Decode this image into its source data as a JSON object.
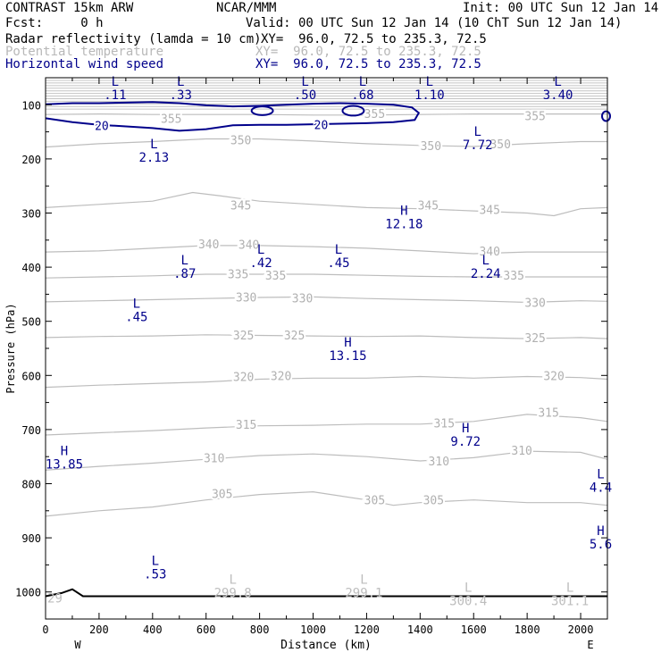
{
  "header": {
    "model": "CONTRAST 15km ARW",
    "org": "NCAR/MMM",
    "init": "Init: 00 UTC Sun 12 Jan 14",
    "fcst": "Fcst:     0 h",
    "valid": "Valid: 00 UTC Sun 12 Jan 14 (10 ChT Sun 12 Jan 14)",
    "fields": [
      {
        "name": "Radar reflectivity (lamda = 10 cm)",
        "xy": "XY=  96.0, 72.5 to 235.3, 72.5",
        "color": "#000000"
      },
      {
        "name": "Potential temperature",
        "xy": "XY=  96.0, 72.5 to 235.3, 72.5",
        "color": "#b8b8b8"
      },
      {
        "name": "Horizontal wind speed",
        "xy": "XY=  96.0, 72.5 to 235.3, 72.5",
        "color": "#00008b"
      }
    ]
  },
  "chart_data": {
    "type": "contour",
    "xlabel": "Distance (km)",
    "ylabel": "Pressure (hPa)",
    "xlim": [
      0,
      2100
    ],
    "ylim": [
      1050,
      50
    ],
    "x_ticks": [
      0,
      200,
      400,
      600,
      800,
      1000,
      1200,
      1400,
      1600,
      1800,
      2000
    ],
    "y_ticks": [
      100,
      200,
      300,
      400,
      500,
      600,
      700,
      800,
      900,
      1000
    ],
    "x_endpoints": {
      "left": "W",
      "right": "E"
    },
    "theta_contours": [
      {
        "value": 305,
        "pts": [
          [
            0,
            860
          ],
          [
            200,
            850
          ],
          [
            400,
            843
          ],
          [
            600,
            830
          ],
          [
            800,
            820
          ],
          [
            1000,
            815
          ],
          [
            1200,
            830
          ],
          [
            1300,
            840
          ],
          [
            1400,
            835
          ],
          [
            1600,
            830
          ],
          [
            1800,
            835
          ],
          [
            2000,
            835
          ],
          [
            2100,
            840
          ]
        ],
        "labels": [
          [
            660,
            818
          ],
          [
            1230,
            830
          ],
          [
            1450,
            830
          ]
        ]
      },
      {
        "value": 310,
        "pts": [
          [
            0,
            775
          ],
          [
            200,
            768
          ],
          [
            400,
            762
          ],
          [
            600,
            755
          ],
          [
            800,
            748
          ],
          [
            1000,
            745
          ],
          [
            1200,
            750
          ],
          [
            1400,
            758
          ],
          [
            1600,
            752
          ],
          [
            1800,
            740
          ],
          [
            2000,
            742
          ],
          [
            2100,
            755
          ]
        ],
        "labels": [
          [
            630,
            752
          ],
          [
            1470,
            758
          ],
          [
            1780,
            738
          ]
        ]
      },
      {
        "value": 315,
        "pts": [
          [
            0,
            710
          ],
          [
            200,
            706
          ],
          [
            400,
            702
          ],
          [
            600,
            697
          ],
          [
            800,
            693
          ],
          [
            1000,
            692
          ],
          [
            1200,
            690
          ],
          [
            1400,
            690
          ],
          [
            1600,
            685
          ],
          [
            1800,
            672
          ],
          [
            2000,
            678
          ],
          [
            2100,
            685
          ]
        ],
        "labels": [
          [
            750,
            690
          ],
          [
            1490,
            688
          ],
          [
            1880,
            668
          ]
        ]
      },
      {
        "value": 320,
        "pts": [
          [
            0,
            622
          ],
          [
            200,
            618
          ],
          [
            400,
            615
          ],
          [
            600,
            612
          ],
          [
            800,
            607
          ],
          [
            1000,
            605
          ],
          [
            1200,
            605
          ],
          [
            1400,
            602
          ],
          [
            1600,
            605
          ],
          [
            1800,
            602
          ],
          [
            2000,
            604
          ],
          [
            2100,
            607
          ]
        ],
        "labels": [
          [
            740,
            602
          ],
          [
            880,
            600
          ],
          [
            1900,
            600
          ]
        ]
      },
      {
        "value": 325,
        "pts": [
          [
            0,
            530
          ],
          [
            200,
            528
          ],
          [
            400,
            527
          ],
          [
            600,
            525
          ],
          [
            800,
            526
          ],
          [
            1000,
            527
          ],
          [
            1200,
            528
          ],
          [
            1400,
            527
          ],
          [
            1600,
            530
          ],
          [
            1800,
            532
          ],
          [
            2000,
            530
          ],
          [
            2100,
            532
          ]
        ],
        "labels": [
          [
            740,
            525
          ],
          [
            930,
            525
          ],
          [
            1830,
            530
          ]
        ]
      },
      {
        "value": 330,
        "pts": [
          [
            0,
            464
          ],
          [
            200,
            462
          ],
          [
            400,
            460
          ],
          [
            600,
            458
          ],
          [
            800,
            456
          ],
          [
            1000,
            455
          ],
          [
            1200,
            458
          ],
          [
            1400,
            460
          ],
          [
            1600,
            462
          ],
          [
            1800,
            465
          ],
          [
            2000,
            462
          ],
          [
            2100,
            463
          ]
        ],
        "labels": [
          [
            750,
            455
          ],
          [
            960,
            457
          ],
          [
            1830,
            465
          ]
        ]
      },
      {
        "value": 335,
        "pts": [
          [
            0,
            420
          ],
          [
            200,
            418
          ],
          [
            400,
            416
          ],
          [
            600,
            413
          ],
          [
            800,
            413
          ],
          [
            1000,
            413
          ],
          [
            1200,
            415
          ],
          [
            1400,
            417
          ],
          [
            1600,
            418
          ],
          [
            1800,
            418
          ],
          [
            2000,
            418
          ],
          [
            2100,
            418
          ]
        ],
        "labels": [
          [
            720,
            412
          ],
          [
            860,
            415
          ],
          [
            1750,
            415
          ]
        ]
      },
      {
        "value": 340,
        "pts": [
          [
            0,
            372
          ],
          [
            200,
            370
          ],
          [
            400,
            365
          ],
          [
            600,
            360
          ],
          [
            800,
            360
          ],
          [
            1000,
            362
          ],
          [
            1200,
            365
          ],
          [
            1400,
            370
          ],
          [
            1600,
            375
          ],
          [
            1800,
            372
          ],
          [
            2000,
            372
          ],
          [
            2100,
            372
          ]
        ],
        "labels": [
          [
            610,
            357
          ],
          [
            760,
            358
          ],
          [
            1660,
            370
          ]
        ]
      },
      {
        "value": 345,
        "pts": [
          [
            0,
            290
          ],
          [
            200,
            284
          ],
          [
            400,
            278
          ],
          [
            550,
            262
          ],
          [
            650,
            268
          ],
          [
            800,
            278
          ],
          [
            1000,
            284
          ],
          [
            1200,
            290
          ],
          [
            1400,
            292
          ],
          [
            1600,
            296
          ],
          [
            1800,
            300
          ],
          [
            1900,
            305
          ],
          [
            2000,
            292
          ],
          [
            2100,
            290
          ]
        ],
        "labels": [
          [
            730,
            285
          ],
          [
            1430,
            285
          ],
          [
            1660,
            293
          ]
        ]
      },
      {
        "value": 350,
        "pts": [
          [
            0,
            178
          ],
          [
            200,
            172
          ],
          [
            400,
            168
          ],
          [
            600,
            163
          ],
          [
            800,
            163
          ],
          [
            1000,
            167
          ],
          [
            1200,
            172
          ],
          [
            1400,
            175
          ],
          [
            1600,
            177
          ],
          [
            1800,
            172
          ],
          [
            2000,
            168
          ],
          [
            2100,
            168
          ]
        ],
        "labels": [
          [
            730,
            165
          ],
          [
            1440,
            175
          ],
          [
            1700,
            172
          ]
        ]
      },
      {
        "value": 355,
        "pts": [
          [
            0,
            118
          ],
          [
            200,
            117
          ],
          [
            400,
            118
          ],
          [
            600,
            118
          ],
          [
            800,
            118
          ],
          [
            1000,
            119
          ],
          [
            1200,
            119
          ],
          [
            1400,
            118
          ],
          [
            1600,
            117
          ],
          [
            1800,
            117
          ],
          [
            2000,
            117
          ],
          [
            2100,
            117
          ]
        ],
        "labels": [
          [
            470,
            125
          ],
          [
            1230,
            116
          ],
          [
            1830,
            120
          ]
        ]
      }
    ],
    "theta_top_band": {
      "from": 55,
      "to": 108,
      "count": 12
    },
    "wind_contours": [
      {
        "value": 20,
        "pts": [
          [
            0,
            125
          ],
          [
            100,
            132
          ],
          [
            200,
            137
          ],
          [
            300,
            140
          ],
          [
            400,
            143
          ],
          [
            500,
            148
          ],
          [
            600,
            145
          ],
          [
            700,
            138
          ],
          [
            800,
            137
          ],
          [
            900,
            137
          ],
          [
            1000,
            136
          ],
          [
            1100,
            135
          ],
          [
            1200,
            134
          ],
          [
            1300,
            132
          ],
          [
            1380,
            128
          ],
          [
            1395,
            115
          ],
          [
            1370,
            105
          ],
          [
            1300,
            100
          ],
          [
            1200,
            98
          ],
          [
            1100,
            97
          ],
          [
            1000,
            98
          ],
          [
            900,
            100
          ],
          [
            800,
            102
          ],
          [
            700,
            103
          ],
          [
            600,
            101
          ],
          [
            500,
            97
          ],
          [
            400,
            95
          ],
          [
            300,
            96
          ],
          [
            200,
            97
          ],
          [
            100,
            97
          ],
          [
            0,
            99
          ]
        ],
        "labels": [
          [
            210,
            138
          ],
          [
            1030,
            137
          ]
        ]
      }
    ],
    "wind_small_contours": [
      {
        "cx": 810,
        "cy": 111,
        "rx": 40,
        "ry": 8
      },
      {
        "cx": 1150,
        "cy": 111,
        "rx": 40,
        "ry": 9
      },
      {
        "cx": 2095,
        "cy": 121,
        "rx": 15,
        "ry": 9
      }
    ],
    "reflectivity_line": {
      "pts": [
        [
          0,
          1008
        ],
        [
          60,
          1002
        ],
        [
          100,
          995
        ],
        [
          140,
          1008
        ],
        [
          2100,
          1008
        ]
      ]
    },
    "extrema": [
      {
        "type": "L",
        "value": ".11",
        "x": 260,
        "y": 70
      },
      {
        "type": "L",
        "value": ".33",
        "x": 505,
        "y": 70
      },
      {
        "type": "L",
        "value": ".50",
        "x": 970,
        "y": 70
      },
      {
        "type": "L",
        "value": ".68",
        "x": 1185,
        "y": 70
      },
      {
        "type": "L",
        "value": "1.10",
        "x": 1435,
        "y": 70
      },
      {
        "type": "L",
        "value": "3.40",
        "x": 1915,
        "y": 70
      },
      {
        "type": "L",
        "value": "7.72",
        "x": 1615,
        "y": 162
      },
      {
        "type": "L",
        "value": "2.13",
        "x": 405,
        "y": 185
      },
      {
        "type": "H",
        "value": "12.18",
        "x": 1340,
        "y": 308
      },
      {
        "type": "L",
        "value": ".42",
        "x": 805,
        "y": 380
      },
      {
        "type": "L",
        "value": ".45",
        "x": 1095,
        "y": 380
      },
      {
        "type": "L",
        "value": ".87",
        "x": 520,
        "y": 400
      },
      {
        "type": "L",
        "value": "2.24",
        "x": 1645,
        "y": 400
      },
      {
        "type": "L",
        "value": ".45",
        "x": 340,
        "y": 480
      },
      {
        "type": "H",
        "value": "13.15",
        "x": 1130,
        "y": 552
      },
      {
        "type": "H",
        "value": "9.72",
        "x": 1570,
        "y": 710
      },
      {
        "type": "H",
        "value": "13.85",
        "x": 70,
        "y": 752
      },
      {
        "type": "L",
        "value": "4.4",
        "x": 2075,
        "y": 795
      },
      {
        "type": "H",
        "value": "5.6",
        "x": 2075,
        "y": 900
      },
      {
        "type": "L",
        "value": ".53",
        "x": 410,
        "y": 955
      }
    ],
    "extrema_grey": [
      {
        "type": "L",
        "value": "299.8",
        "x": 700,
        "y": 990
      },
      {
        "type": "L",
        "value": "299.1",
        "x": 1190,
        "y": 990
      },
      {
        "type": "L",
        "value": "300.4",
        "x": 1580,
        "y": 1005
      },
      {
        "type": "L",
        "value": "301.1",
        "x": 1960,
        "y": 1005
      },
      {
        "type": "",
        "value": "29",
        "x": 35,
        "y": 1000
      }
    ]
  }
}
